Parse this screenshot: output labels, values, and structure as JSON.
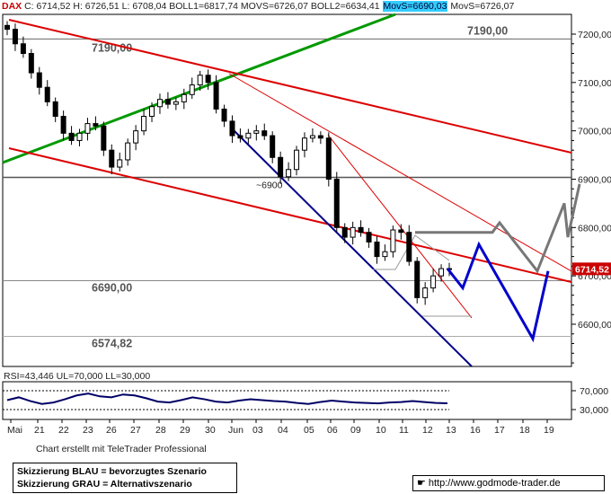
{
  "header": {
    "ticker": "DAX",
    "values": "C: 6714,52 H: 6726,51 L: 6708,04 BOLL1=6817,74 MOVS=6726,07 BOLL2=6634,41",
    "movs_highlight": "MovS=6690,03",
    "movs_tail": "MovS=6726,07"
  },
  "price_axis": {
    "ticks": [
      "7200,00",
      "7100,00",
      "7000,00",
      "6900,00",
      "6800,00",
      "6700,00",
      "6600,00"
    ],
    "tick_values": [
      7200,
      7100,
      7000,
      6900,
      6800,
      6700,
      6600
    ],
    "current_value": "6714,52",
    "current_bg": "#cc0000"
  },
  "levels": [
    {
      "label": "7190,00",
      "value": 7190
    },
    {
      "label": "6690,00",
      "value": 6690
    },
    {
      "label": "6574,82",
      "value": 6574.82
    },
    {
      "label": "~6900",
      "value": 6900
    }
  ],
  "rsi": {
    "label": "RSI=43,446 UL=70,000 LL=30,000",
    "ticks": [
      "70,000",
      "30,000"
    ],
    "tick_values": [
      70,
      30
    ]
  },
  "date_axis": {
    "labels": [
      "Mai",
      "21",
      "22",
      "23",
      "26",
      "27",
      "28",
      "29",
      "30",
      "Jun",
      "03",
      "04",
      "05",
      "06",
      "09",
      "10",
      "11",
      "12",
      "13",
      "16",
      "17",
      "18",
      "19"
    ]
  },
  "credit": "Chart erstellt mit TeleTrader Professional",
  "legend": {
    "blue": "Skizzierung BLAU = bevorzugtes Szenario",
    "gray": "Skizzierung GRAU = Alternativszenario"
  },
  "source": "http://www.godmode-trader.de",
  "colors": {
    "candle": "#000000",
    "support_line": "#555555",
    "green_trend": "#009900",
    "red_channel": "#dd0000",
    "blue_channel": "#000088",
    "blue_scenario": "#0000cc",
    "gray_scenario": "#777777",
    "rsi_line": "#000066"
  },
  "chart_data": {
    "type": "candlestick",
    "title": "DAX",
    "y_range": [
      6550,
      7230
    ],
    "close_series": [
      7210,
      7180,
      7160,
      7120,
      7090,
      7060,
      7030,
      6995,
      6980,
      6995,
      7015,
      7010,
      6960,
      6925,
      6940,
      6975,
      7000,
      7030,
      7050,
      7065,
      7055,
      7060,
      7075,
      7095,
      7115,
      7100,
      7045,
      7020,
      6990,
      6985,
      6995,
      7000,
      6990,
      6945,
      6905,
      6920,
      6960,
      6985,
      6990,
      6985,
      6900,
      6800,
      6780,
      6800,
      6790,
      6770,
      6740,
      6750,
      6795,
      6790,
      6730,
      6655,
      6675,
      6700,
      6715,
      6714.52
    ],
    "rsi_values": [
      50,
      56,
      48,
      42,
      45,
      52,
      60,
      64,
      58,
      56,
      62,
      60,
      54,
      47,
      45,
      50,
      56,
      52,
      47,
      45,
      49,
      52,
      50,
      48,
      47,
      44,
      42,
      46,
      49,
      47,
      45,
      44,
      43,
      45,
      46,
      48,
      46,
      44,
      43.446
    ],
    "rsi_limits": [
      30,
      70
    ],
    "blue_scenario": [
      6715,
      6675,
      6765,
      6570,
      6710
    ],
    "gray_scenario": [
      6790,
      6790,
      6810,
      6710,
      6850,
      6780,
      6890
    ]
  }
}
